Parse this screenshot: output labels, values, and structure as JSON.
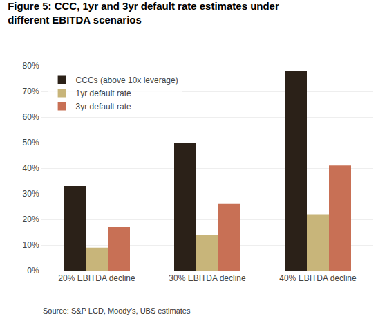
{
  "chart_data": {
    "type": "bar",
    "title": "Figure 5: CCC, 1yr and 3yr default rate estimates under",
    "subtitle": "different EBITDA scenarios",
    "annotations": [
      "Source: S&P LCD, Moody's, UBS estimates"
    ],
    "categories": [
      "20% EBITDA decline",
      "30% EBITDA decline",
      "40% EBITDA decline"
    ],
    "series": [
      {
        "name": "CCCs (above 10x leverage)",
        "color": "#2b2118",
        "values": [
          0.33,
          0.5,
          0.78
        ]
      },
      {
        "name": "1yr default rate",
        "color": "#c8b57a",
        "values": [
          0.09,
          0.14,
          0.22
        ]
      },
      {
        "name": "3yr default rate",
        "color": "#c87055",
        "values": [
          0.17,
          0.26,
          0.41
        ]
      }
    ],
    "ylim": [
      0,
      0.8
    ],
    "yticks": [
      {
        "value": 0.0,
        "label": "0%"
      },
      {
        "value": 0.1,
        "label": "10%"
      },
      {
        "value": 0.2,
        "label": "20%"
      },
      {
        "value": 0.3,
        "label": "30%"
      },
      {
        "value": 0.4,
        "label": "40%"
      },
      {
        "value": 0.5,
        "label": "50%"
      },
      {
        "value": 0.6,
        "label": "60%"
      },
      {
        "value": 0.7,
        "label": "70%"
      },
      {
        "value": 0.8,
        "label": "80%"
      }
    ],
    "grid": true,
    "legend": "upper left"
  }
}
